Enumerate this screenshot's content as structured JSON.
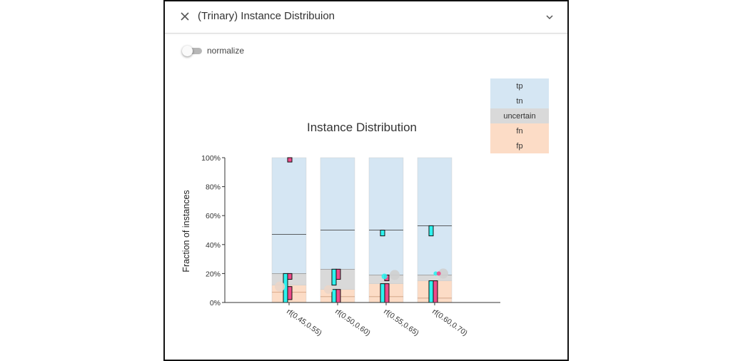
{
  "window": {
    "title": "(Trinary) Instance Distribuion",
    "close_icon": "close-icon",
    "collapse_icon": "chevron-down-icon"
  },
  "toggle": {
    "label": "normalize",
    "checked": false
  },
  "colors": {
    "tp": "#d5e6f3",
    "tn": "#d5e6f3",
    "uncertain": "#d9d9d9",
    "fn": "#fcdcc6",
    "fp": "#fcdcc6",
    "cyan": "#2ef2ee",
    "magenta": "#ee4b8a"
  },
  "chart_data": {
    "type": "bar",
    "title": "Instance Distribution",
    "xlabel": "",
    "ylabel": "Fraction of instances",
    "ylim": [
      0,
      1
    ],
    "yticks": [
      "0%",
      "20%",
      "40%",
      "60%",
      "80%",
      "100%"
    ],
    "categories": [
      "rf(0.45,0.55)",
      "rf(0.50,0.60)",
      "rf(0.55,0.65)",
      "rf(0.60,0.70)"
    ],
    "legend": [
      "tp",
      "tn",
      "uncertain",
      "fn",
      "fp"
    ],
    "legend_position": "top-right",
    "stacks": [
      {
        "fp": 0.07,
        "fn": 0.05,
        "uncertain": 0.08,
        "tn": 0.27,
        "tp": 0.53
      },
      {
        "fp": 0.04,
        "fn": 0.05,
        "uncertain": 0.14,
        "tn": 0.27,
        "tp": 0.5
      },
      {
        "fp": 0.04,
        "fn": 0.09,
        "uncertain": 0.06,
        "tn": 0.31,
        "tp": 0.5
      },
      {
        "fp": 0.03,
        "fn": 0.12,
        "uncertain": 0.04,
        "tn": 0.34,
        "tp": 0.47
      }
    ],
    "mini_bars": [
      {
        "cat": 0,
        "side": "left",
        "color": "cyan",
        "y0": 0.0,
        "y1": 0.2
      },
      {
        "cat": 0,
        "side": "right",
        "color": "magenta",
        "y0": 0.02,
        "y1": 0.11
      },
      {
        "cat": 0,
        "side": "right",
        "color": "magenta",
        "y0": 0.16,
        "y1": 0.2
      },
      {
        "cat": 0,
        "side": "right",
        "color": "magenta",
        "y0": 0.97,
        "y1": 1.0
      },
      {
        "cat": 1,
        "side": "left",
        "color": "cyan",
        "y0": 0.0,
        "y1": 0.09
      },
      {
        "cat": 1,
        "side": "left",
        "color": "cyan",
        "y0": 0.12,
        "y1": 0.23
      },
      {
        "cat": 1,
        "side": "right",
        "color": "magenta",
        "y0": 0.0,
        "y1": 0.09
      },
      {
        "cat": 1,
        "side": "right",
        "color": "magenta",
        "y0": 0.16,
        "y1": 0.23
      },
      {
        "cat": 2,
        "side": "left",
        "color": "cyan",
        "y0": 0.0,
        "y1": 0.13
      },
      {
        "cat": 2,
        "side": "left",
        "color": "cyan",
        "y0": 0.46,
        "y1": 0.5
      },
      {
        "cat": 2,
        "side": "right",
        "color": "magenta",
        "y0": 0.0,
        "y1": 0.13
      },
      {
        "cat": 2,
        "side": "right",
        "color": "magenta",
        "y0": 0.15,
        "y1": 0.19
      },
      {
        "cat": 3,
        "side": "left",
        "color": "cyan",
        "y0": 0.0,
        "y1": 0.15
      },
      {
        "cat": 3,
        "side": "left",
        "color": "cyan",
        "y0": 0.46,
        "y1": 0.53
      },
      {
        "cat": 3,
        "side": "right",
        "color": "magenta",
        "y0": 0.0,
        "y1": 0.15
      }
    ],
    "dots": [
      {
        "cat": 0,
        "y": 0.11,
        "offset": -0.27,
        "r": 7,
        "color": "#ead5c8"
      },
      {
        "cat": 1,
        "y": 0.09,
        "offset": -0.27,
        "r": 6,
        "color": "#ead5c8"
      },
      {
        "cat": 2,
        "y": 0.19,
        "offset": 0.25,
        "r": 7,
        "color": "#cfcfcf"
      },
      {
        "cat": 2,
        "y": 0.18,
        "offset": -0.05,
        "r": 4,
        "color": "#2ef2ee"
      },
      {
        "cat": 3,
        "y": 0.2,
        "offset": 0.25,
        "r": 7,
        "color": "#cfcfcf"
      },
      {
        "cat": 3,
        "y": 0.2,
        "offset": 0.03,
        "r": 3,
        "color": "#2ef2ee"
      },
      {
        "cat": 3,
        "y": 0.2,
        "offset": 0.12,
        "r": 3,
        "color": "#ee4b8a"
      }
    ]
  }
}
